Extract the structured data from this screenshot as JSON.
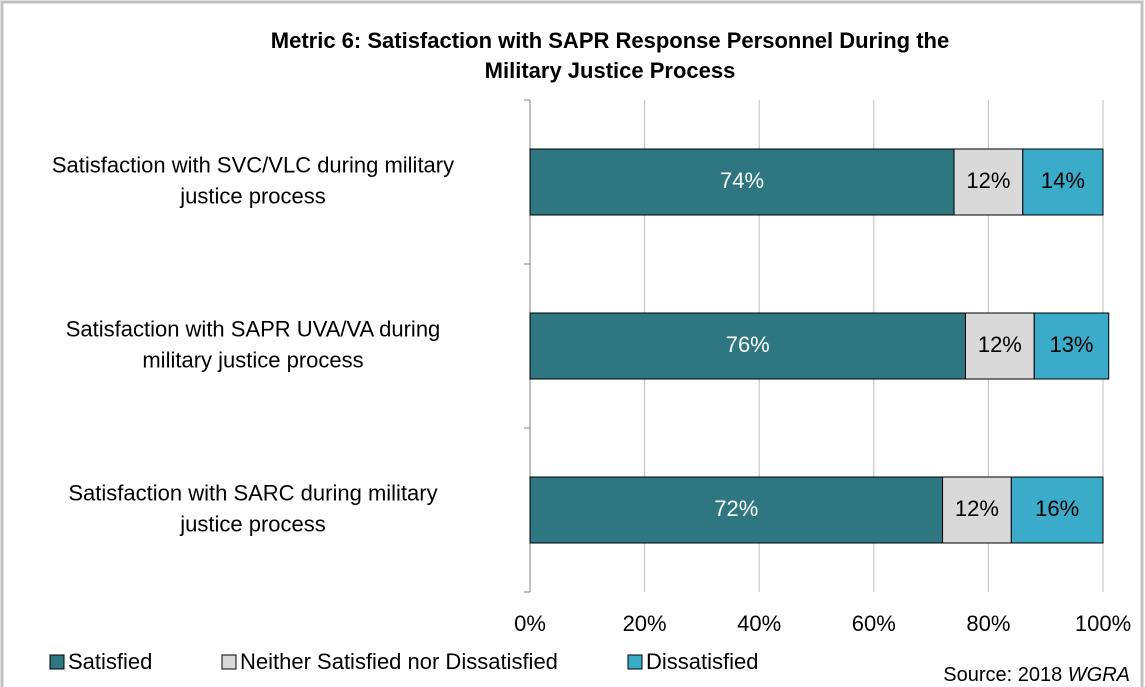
{
  "chart_data": {
    "type": "stacked_bar_horizontal",
    "title": [
      "Metric 6: Satisfaction with SAPR Response Personnel During the",
      "Military Justice Process"
    ],
    "categories": [
      [
        "Satisfaction with SVC/VLC during military",
        "justice process"
      ],
      [
        "Satisfaction with SAPR UVA/VA during",
        "military justice process"
      ],
      [
        "Satisfaction with SARC during military",
        "justice process"
      ]
    ],
    "series": [
      {
        "name": "Satisfied",
        "color": "#2e7680",
        "label_color": "#ffffff",
        "values": [
          74,
          76,
          72
        ],
        "value_labels": [
          "74%",
          "76%",
          "72%"
        ]
      },
      {
        "name": "Neither Satisfied nor Dissatisfied",
        "color": "#d9d9d9",
        "label_color": "#000000",
        "values": [
          12,
          12,
          12
        ],
        "value_labels": [
          "12%",
          "12%",
          "12%"
        ]
      },
      {
        "name": "Dissatisfied",
        "color": "#3aabc8",
        "label_color": "#000000",
        "values": [
          14,
          13,
          16
        ],
        "value_labels": [
          "14%",
          "13%",
          "16%"
        ]
      }
    ],
    "xlim": [
      0,
      100
    ],
    "xticks": [
      {
        "value": 0,
        "label": "0%"
      },
      {
        "value": 20,
        "label": "20%"
      },
      {
        "value": 40,
        "label": "40%"
      },
      {
        "value": 60,
        "label": "60%"
      },
      {
        "value": 80,
        "label": "80%"
      },
      {
        "value": 100,
        "label": "100%"
      }
    ],
    "grid": true,
    "legend": "bottom",
    "source": "Source: 2018",
    "source_italic": "WGRA"
  }
}
